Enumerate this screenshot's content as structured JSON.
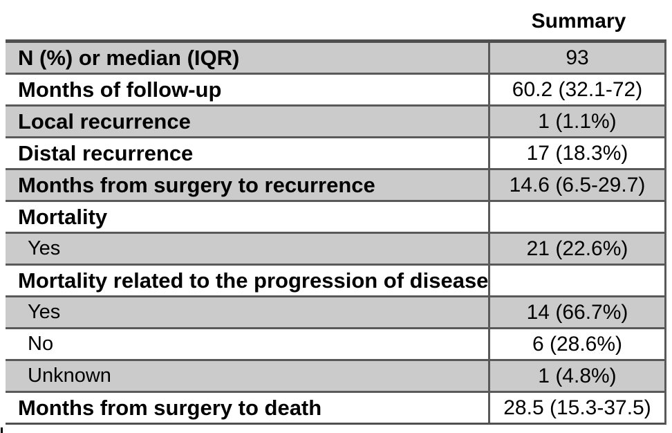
{
  "document": {
    "header": {
      "summary_label": "Summary"
    },
    "table": {
      "rows": [
        {
          "label": "N (%) or median (IQR)",
          "value": "93",
          "indent": false,
          "shaded": true
        },
        {
          "label": "Months of follow-up",
          "value": "60.2 (32.1-72)",
          "indent": false,
          "shaded": false
        },
        {
          "label": "Local recurrence",
          "value": "1 (1.1%)",
          "indent": false,
          "shaded": true
        },
        {
          "label": "Distal recurrence",
          "value": "17 (18.3%)",
          "indent": false,
          "shaded": false
        },
        {
          "label": "Months from surgery to recurrence",
          "value": "14.6 (6.5-29.7)",
          "indent": false,
          "shaded": true
        },
        {
          "label": "Mortality",
          "value": "",
          "indent": false,
          "shaded": false
        },
        {
          "label": "Yes",
          "value": "21 (22.6%)",
          "indent": true,
          "shaded": true
        },
        {
          "label": "Mortality related to the progression of disease",
          "value": "",
          "indent": false,
          "shaded": false
        },
        {
          "label": "Yes",
          "value": "14 (66.7%)",
          "indent": true,
          "shaded": true
        },
        {
          "label": "No",
          "value": "6 (28.6%)",
          "indent": true,
          "shaded": false
        },
        {
          "label": "Unknown",
          "value": "1 (4.8%)",
          "indent": true,
          "shaded": true
        },
        {
          "label": "Months from surgery to death",
          "value": "28.5 (15.3-37.5)",
          "indent": false,
          "shaded": false
        }
      ]
    },
    "colors": {
      "row_shade": "#cbcbcb",
      "grid_line": "#595959",
      "top_border": "#4f4f4f",
      "text": "#000000",
      "background": "#ffffff"
    }
  }
}
